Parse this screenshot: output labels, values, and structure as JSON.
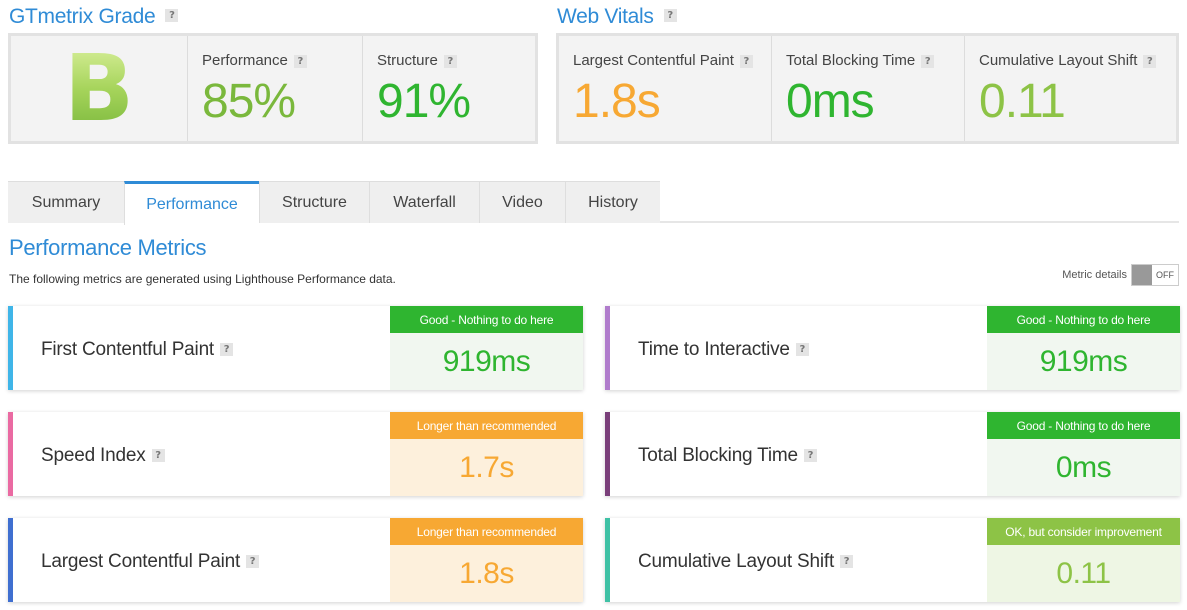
{
  "grade_panel": {
    "title": "GTmetrix Grade",
    "grade": "B",
    "performance": {
      "label": "Performance",
      "value": "85%",
      "color": "#7ab83c"
    },
    "structure": {
      "label": "Structure",
      "value": "91%",
      "color": "#2fb530"
    }
  },
  "vitals_panel": {
    "title": "Web Vitals",
    "lcp": {
      "label": "Largest Contentful Paint",
      "value": "1.8s",
      "color": "#f7a833"
    },
    "tbt": {
      "label": "Total Blocking Time",
      "value": "0ms",
      "color": "#2fb530"
    },
    "cls": {
      "label": "Cumulative Layout Shift",
      "value": "0.11",
      "color": "#8dc346"
    }
  },
  "tabs": [
    "Summary",
    "Performance",
    "Structure",
    "Waterfall",
    "Video",
    "History"
  ],
  "active_tab": "Performance",
  "section": {
    "title": "Performance Metrics",
    "description": "The following metrics are generated using Lighthouse Performance data.",
    "metric_details_label": "Metric details",
    "toggle_state": "OFF"
  },
  "metrics": [
    {
      "name": "First Contentful Paint",
      "status": "Good - Nothing to do here",
      "value": "919ms",
      "rating": "good",
      "bar_color": "#3fb5e8"
    },
    {
      "name": "Time to Interactive",
      "status": "Good - Nothing to do here",
      "value": "919ms",
      "rating": "good",
      "bar_color": "#b07ccc"
    },
    {
      "name": "Speed Index",
      "status": "Longer than recommended",
      "value": "1.7s",
      "rating": "warn",
      "bar_color": "#ea6aa2"
    },
    {
      "name": "Total Blocking Time",
      "status": "Good - Nothing to do here",
      "value": "0ms",
      "rating": "good",
      "bar_color": "#7a3f7a"
    },
    {
      "name": "Largest Contentful Paint",
      "status": "Longer than recommended",
      "value": "1.8s",
      "rating": "warn",
      "bar_color": "#3f6fd0"
    },
    {
      "name": "Cumulative Layout Shift",
      "status": "OK, but consider improvement",
      "value": "0.11",
      "rating": "ok",
      "bar_color": "#3fc1a5"
    }
  ],
  "help_icon_text": "?"
}
